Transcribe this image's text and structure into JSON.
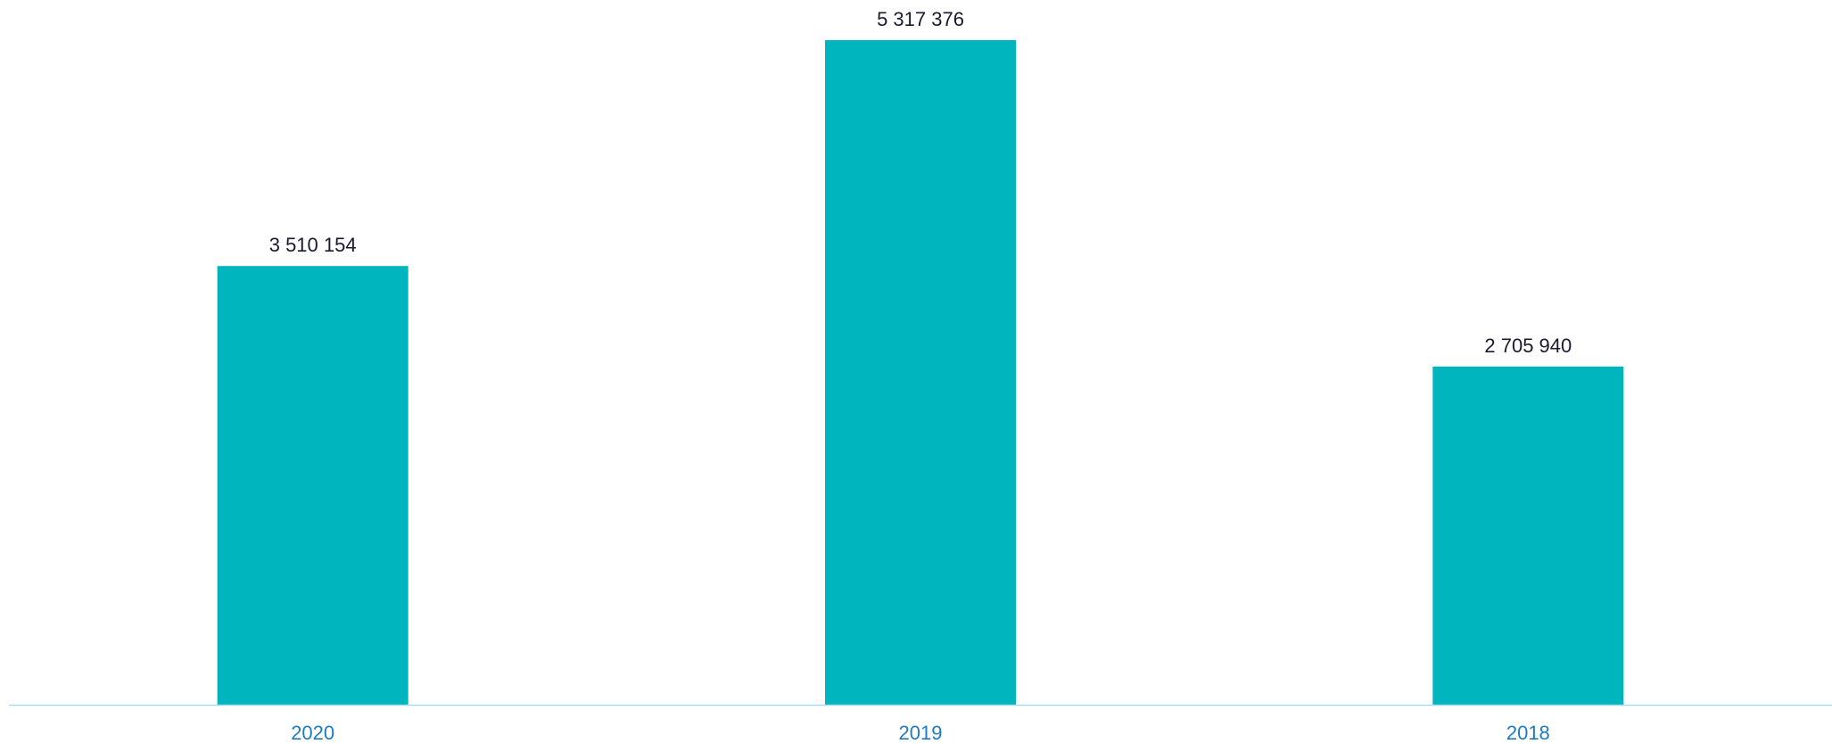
{
  "colors": {
    "bar": "#00B5BD",
    "axis_line": "#A9DDEF",
    "value_label": "#1A1A2E",
    "tick_label": "#1F7BC0",
    "background": "#FFFFFF"
  },
  "chart_data": {
    "type": "bar",
    "categories": [
      "2020",
      "2019",
      "2018"
    ],
    "values": [
      3510154,
      5317376,
      2705940
    ],
    "value_labels": [
      "3 510 154",
      "5 317 376",
      "2 705 940"
    ],
    "title": "",
    "xlabel": "",
    "ylabel": "",
    "ylim": [
      0,
      5317376
    ],
    "grid": false,
    "legend": "none"
  }
}
